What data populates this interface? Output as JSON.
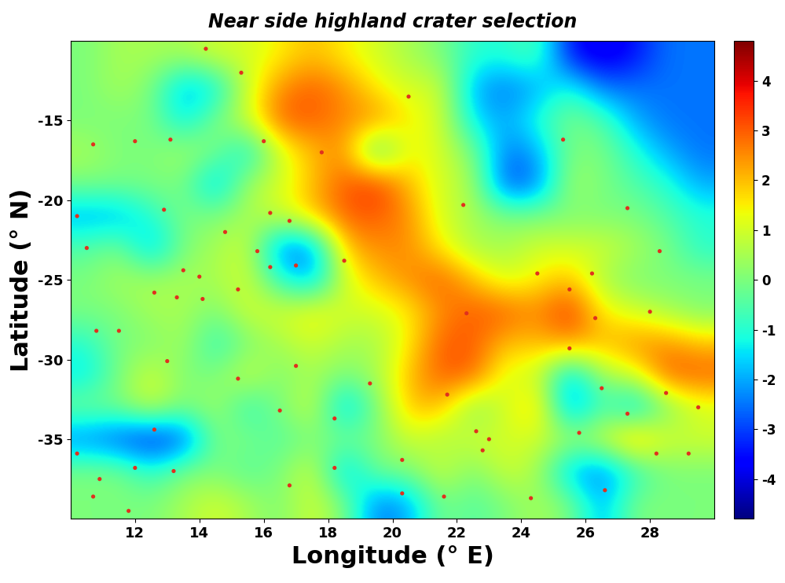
{
  "chart_data": {
    "type": "heatmap",
    "title": "Near side highland crater selection",
    "x_label": "Longitude (° E)",
    "y_label": "Latitude (° N)",
    "xlim": [
      10,
      30
    ],
    "ylim": [
      -40,
      -10
    ],
    "xticks": [
      12,
      14,
      16,
      18,
      20,
      22,
      24,
      26,
      28
    ],
    "yticks": [
      -35,
      -30,
      -25,
      -20,
      -15
    ],
    "cell_x": [
      10.5,
      11.5,
      12.5,
      13.5,
      14.5,
      15.5,
      16.5,
      17.5,
      18.5,
      19.5,
      20.5,
      21.5,
      22.5,
      23.5,
      24.5,
      25.5,
      26.5,
      27.5,
      28.5,
      29.5
    ],
    "cell_y": [
      -11,
      -13,
      -15,
      -17,
      -19,
      -21,
      -23,
      -25,
      -27,
      -29,
      -31,
      -33,
      -35,
      -37,
      -39
    ],
    "cells": [
      [
        0,
        0.5,
        0.5,
        0.5,
        1,
        1,
        1.5,
        2,
        1.5,
        1,
        0.5,
        0,
        -1,
        -1,
        -0.5,
        -3.5,
        -4,
        -3.5,
        -2.5,
        -2.5
      ],
      [
        0,
        0.5,
        0,
        -2,
        -1.5,
        1,
        2.5,
        3,
        2.5,
        1.5,
        1,
        1,
        -2,
        -2.5,
        -2,
        -1,
        -2.5,
        -2.5,
        -2.5,
        -2.5
      ],
      [
        0,
        0,
        0,
        -1.5,
        0,
        1,
        3,
        3,
        2.5,
        2.5,
        1.5,
        1,
        -1.5,
        -2,
        -1,
        0,
        -0.5,
        -2,
        -2.5,
        -2.5
      ],
      [
        0.5,
        0,
        0,
        0.5,
        0,
        -1.5,
        1,
        2,
        2.5,
        -1,
        1.5,
        1,
        0,
        -2.5,
        -2,
        0,
        0,
        -1,
        -2,
        -2.5
      ],
      [
        0,
        0,
        0,
        0,
        -2,
        0.5,
        1,
        2,
        3,
        3.5,
        2,
        1,
        0.5,
        -3,
        -2.5,
        0.5,
        0,
        -0.5,
        -1,
        -2
      ],
      [
        -2,
        -2,
        -1,
        0,
        0,
        0.5,
        1,
        2,
        3,
        3,
        2.5,
        1,
        0.5,
        0,
        0,
        0,
        0,
        0,
        -0.5,
        -1
      ],
      [
        -0.5,
        0,
        -2,
        0,
        0.5,
        1,
        -2.5,
        -2.5,
        2,
        2.5,
        2.5,
        1.5,
        0.5,
        0.5,
        1,
        1,
        1,
        0.5,
        0,
        -1
      ],
      [
        0,
        0.5,
        0.5,
        0.5,
        0.5,
        1,
        -1,
        -2,
        1,
        2,
        2.5,
        3,
        2,
        1,
        1.5,
        2,
        0.5,
        0,
        0,
        0
      ],
      [
        0,
        0,
        0.5,
        0.5,
        0,
        1,
        1,
        1.5,
        1,
        1,
        1.5,
        2.5,
        3,
        3,
        2.5,
        3.5,
        1.5,
        1,
        0.5,
        0
      ],
      [
        -1,
        0,
        0,
        0.5,
        -1,
        0,
        0.5,
        1,
        0.5,
        0.5,
        1.5,
        3,
        3,
        2,
        2,
        2.5,
        2,
        2.5,
        2.5,
        2
      ],
      [
        -1.5,
        0,
        1,
        0,
        0,
        1,
        0,
        0.5,
        0,
        0.5,
        2,
        3,
        3,
        1,
        1,
        -2,
        0.5,
        1,
        3,
        3
      ],
      [
        0,
        0,
        1,
        0,
        0.5,
        -1,
        0,
        1,
        -2,
        0,
        2,
        2,
        0,
        1,
        2,
        -2.5,
        -0.5,
        -2,
        0,
        1
      ],
      [
        -2.5,
        -3,
        -3.5,
        -3,
        0,
        0,
        -0.5,
        0,
        0,
        0,
        1,
        0.5,
        1,
        1,
        1,
        0.5,
        1,
        2.5,
        1,
        1
      ],
      [
        0,
        0,
        -1,
        0,
        0,
        -0.5,
        0,
        1,
        -2,
        0,
        0,
        1,
        0,
        1,
        0.5,
        -2,
        -2.5,
        -1,
        0,
        0
      ],
      [
        0,
        0,
        0,
        0.5,
        1,
        0.5,
        0,
        1,
        0,
        -2.5,
        -2,
        0,
        -0.5,
        0,
        0.5,
        0,
        -2,
        0,
        0,
        0
      ]
    ],
    "colorbar_range": [
      -4.8,
      4.8
    ],
    "colorbar_ticks": [
      -4,
      -3,
      -2,
      -1,
      0,
      1,
      2,
      3,
      4
    ],
    "color": "#e0301e",
    "marker": "o",
    "points": [
      [
        10.7,
        -16.5
      ],
      [
        12.0,
        -16.3
      ],
      [
        13.1,
        -16.2
      ],
      [
        15.3,
        -12.0
      ],
      [
        14.2,
        -10.5
      ],
      [
        16.0,
        -16.3
      ],
      [
        17.8,
        -17.0
      ],
      [
        20.5,
        -13.5
      ],
      [
        25.3,
        -16.2
      ],
      [
        22.2,
        -20.3
      ],
      [
        27.3,
        -20.5
      ],
      [
        16.2,
        -20.8
      ],
      [
        16.8,
        -21.3
      ],
      [
        14.8,
        -22.0
      ],
      [
        12.9,
        -20.6
      ],
      [
        10.2,
        -21.0
      ],
      [
        10.5,
        -23.0
      ],
      [
        15.8,
        -23.2
      ],
      [
        16.2,
        -24.2
      ],
      [
        17.0,
        -24.1
      ],
      [
        13.5,
        -24.4
      ],
      [
        14.0,
        -24.8
      ],
      [
        12.6,
        -25.8
      ],
      [
        13.3,
        -26.1
      ],
      [
        14.1,
        -26.2
      ],
      [
        15.2,
        -25.6
      ],
      [
        18.5,
        -23.8
      ],
      [
        24.5,
        -24.6
      ],
      [
        25.5,
        -25.6
      ],
      [
        26.2,
        -24.6
      ],
      [
        28.3,
        -23.2
      ],
      [
        26.3,
        -27.4
      ],
      [
        22.3,
        -27.1
      ],
      [
        28.0,
        -27.0
      ],
      [
        10.8,
        -28.2
      ],
      [
        11.5,
        -28.2
      ],
      [
        13.0,
        -30.1
      ],
      [
        17.0,
        -30.4
      ],
      [
        15.2,
        -31.2
      ],
      [
        19.3,
        -31.5
      ],
      [
        25.5,
        -29.3
      ],
      [
        21.7,
        -32.2
      ],
      [
        26.5,
        -31.8
      ],
      [
        28.5,
        -32.1
      ],
      [
        29.5,
        -33.0
      ],
      [
        27.3,
        -33.4
      ],
      [
        16.5,
        -33.2
      ],
      [
        18.2,
        -33.7
      ],
      [
        12.6,
        -34.4
      ],
      [
        22.6,
        -34.5
      ],
      [
        23.0,
        -35.0
      ],
      [
        25.8,
        -34.6
      ],
      [
        10.2,
        -35.9
      ],
      [
        22.8,
        -35.7
      ],
      [
        20.3,
        -36.3
      ],
      [
        28.2,
        -35.9
      ],
      [
        29.2,
        -35.9
      ],
      [
        10.9,
        -37.5
      ],
      [
        12.0,
        -36.8
      ],
      [
        13.2,
        -37.0
      ],
      [
        18.2,
        -36.8
      ],
      [
        16.8,
        -37.9
      ],
      [
        26.6,
        -38.2
      ],
      [
        10.7,
        -38.6
      ],
      [
        11.8,
        -39.5
      ],
      [
        20.3,
        -38.4
      ],
      [
        21.6,
        -38.6
      ],
      [
        24.3,
        -38.7
      ]
    ]
  }
}
